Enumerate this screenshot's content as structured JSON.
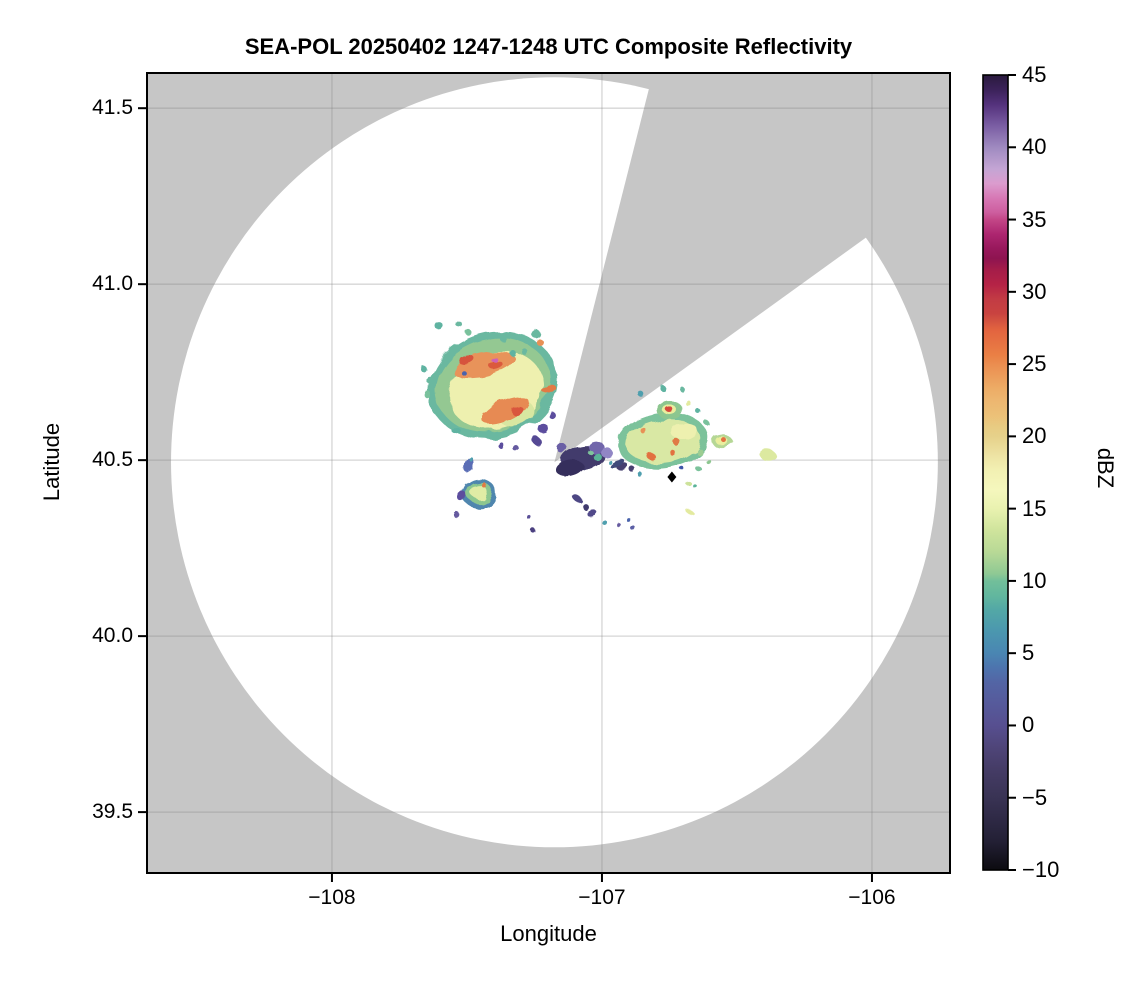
{
  "chart_data": {
    "type": "radar_ppi_map",
    "title": "SEA-POL 20250402 1247-1248 UTC Composite Reflectivity",
    "xlabel": "Longitude",
    "ylabel": "Latitude",
    "xlim": [
      -108.685,
      -105.711
    ],
    "ylim": [
      39.327,
      41.6
    ],
    "grid": true,
    "x_ticks": [
      -108,
      -107,
      -106
    ],
    "x_tick_labels": [
      "−108",
      "−107",
      "−106"
    ],
    "y_ticks": [
      41.5,
      41.0,
      40.5,
      40.0,
      39.5
    ],
    "y_tick_labels": [
      "41.5",
      "41.0",
      "40.5",
      "40.0",
      "39.5"
    ],
    "background_color": "#c6c6c6",
    "scan_area_color": "#ffffff",
    "gridline_color": "rgba(128,128,128,0.32)",
    "radar": {
      "lon": -107.176,
      "lat": 40.494,
      "range_rx_deg_lon": 1.42,
      "range_ry_deg_lat": 1.094
    },
    "blocked_sector": {
      "azimuth_start_deg": 14.2,
      "azimuth_end_deg": 55.0,
      "color": "#c6c6c6"
    },
    "site_marker": {
      "lon": -106.741,
      "lat": 40.452,
      "shape": "diamond",
      "color": "#000000"
    },
    "colorbar": {
      "label": "dBZ",
      "min": -10,
      "max": 45,
      "ticks": [
        45,
        40,
        35,
        30,
        25,
        20,
        15,
        10,
        5,
        0,
        -5,
        -10
      ],
      "tick_labels": [
        "45",
        "40",
        "35",
        "30",
        "25",
        "20",
        "15",
        "10",
        "5",
        "0",
        "−5",
        "−10"
      ],
      "stops": [
        [
          45,
          "#2a1a3e"
        ],
        [
          44,
          "#3b2259"
        ],
        [
          43,
          "#53317b"
        ],
        [
          41.5,
          "#7a5da3"
        ],
        [
          40,
          "#9f8ac0"
        ],
        [
          38.5,
          "#c4a5d4"
        ],
        [
          37.5,
          "#db9cce"
        ],
        [
          36.5,
          "#d778b5"
        ],
        [
          35.5,
          "#cd5e9f"
        ],
        [
          35,
          "#c34687"
        ],
        [
          34,
          "#ad2670"
        ],
        [
          33,
          "#98185c"
        ],
        [
          32.3,
          "#8e1450"
        ],
        [
          31.5,
          "#a51d49"
        ],
        [
          30.5,
          "#b52346"
        ],
        [
          29.5,
          "#c23b44"
        ],
        [
          28.5,
          "#c94340"
        ],
        [
          28,
          "#d35340"
        ],
        [
          27.4,
          "#e2633f"
        ],
        [
          25.6,
          "#ea8045"
        ],
        [
          24.9,
          "#eb8f51"
        ],
        [
          23.3,
          "#edac66"
        ],
        [
          22.6,
          "#edb56f"
        ],
        [
          21.4,
          "#ecc178"
        ],
        [
          20.7,
          "#e8cb82"
        ],
        [
          20,
          "#e6d18a"
        ],
        [
          18.6,
          "#eee4a5"
        ],
        [
          17.7,
          "#f2f0b2"
        ],
        [
          16.3,
          "#f5f7bd"
        ],
        [
          15,
          "#e9f2b0"
        ],
        [
          13.5,
          "#cfe49c"
        ],
        [
          12,
          "#b8d996"
        ],
        [
          10.5,
          "#8fc994"
        ],
        [
          10,
          "#72bf9a"
        ],
        [
          9,
          "#62b79e"
        ],
        [
          8,
          "#53a8a6"
        ],
        [
          6.5,
          "#4b97af"
        ],
        [
          5,
          "#4a86b2"
        ],
        [
          4,
          "#4d74ae"
        ],
        [
          3,
          "#5365a5"
        ],
        [
          1.5,
          "#565a9b"
        ],
        [
          0,
          "#574f90"
        ],
        [
          -1.5,
          "#4f4579"
        ],
        [
          -3,
          "#453c66"
        ],
        [
          -5,
          "#393354"
        ],
        [
          -6.5,
          "#2e2945"
        ],
        [
          -8,
          "#232035"
        ],
        [
          -10,
          "#0c0b10"
        ]
      ]
    },
    "echo_fields": [
      "lon",
      "lat",
      "rx_deg",
      "ry_deg",
      "rot_deg",
      "color",
      "dbz_approx"
    ],
    "echoes": [
      [
        -107.404,
        40.713,
        0.241,
        0.151,
        -15,
        "#6ab8a0",
        8
      ],
      [
        -107.404,
        40.713,
        0.215,
        0.131,
        -15,
        "#94c892",
        11
      ],
      [
        -107.393,
        40.699,
        0.178,
        0.108,
        -18,
        "#eef0af",
        17
      ],
      [
        -107.319,
        40.634,
        0.067,
        0.037,
        -20,
        "#d8e7a1",
        14
      ],
      [
        -107.437,
        40.77,
        0.119,
        0.034,
        -12,
        "#e8935a",
        23
      ],
      [
        -107.5,
        40.784,
        0.03,
        0.013,
        -12,
        "#d6523d",
        27
      ],
      [
        -107.389,
        40.767,
        0.026,
        0.011,
        -12,
        "#db5a3e",
        26
      ],
      [
        -107.396,
        40.784,
        0.012,
        0.008,
        0,
        "#cf62b5",
        35
      ],
      [
        -107.359,
        40.642,
        0.093,
        0.028,
        -25,
        "#e78a52",
        24
      ],
      [
        -107.315,
        40.642,
        0.022,
        0.013,
        -25,
        "#d9573e",
        27
      ],
      [
        -107.196,
        40.702,
        0.026,
        0.011,
        -20,
        "#e27a45",
        25
      ],
      [
        -107.23,
        40.835,
        0.013,
        0.009,
        0,
        "#e89055",
        22
      ],
      [
        -107.515,
        40.75,
        0.009,
        0.007,
        0,
        "#4a63ac",
        3
      ],
      [
        -107.189,
        40.631,
        0.013,
        0.01,
        0,
        "#5c4e9e",
        0
      ],
      [
        -107.219,
        40.591,
        0.019,
        0.014,
        0,
        "#5c4e9e",
        0
      ],
      [
        -107.241,
        40.554,
        0.015,
        0.011,
        0,
        "#544a94",
        -1
      ],
      [
        -107.319,
        40.534,
        0.011,
        0.009,
        0,
        "#655aa0",
        1
      ],
      [
        -107.378,
        40.545,
        0.011,
        0.009,
        0,
        "#5c4e9e",
        0
      ],
      [
        -107.607,
        40.884,
        0.015,
        0.011,
        0,
        "#5fb3a1",
        8
      ],
      [
        -107.533,
        40.889,
        0.011,
        0.009,
        0,
        "#6ab8a0",
        8
      ],
      [
        -107.496,
        40.864,
        0.011,
        0.009,
        0,
        "#79c19c",
        9
      ],
      [
        -107.367,
        40.847,
        0.013,
        0.01,
        0,
        "#6ab8a0",
        8
      ],
      [
        -107.33,
        40.804,
        0.011,
        0.009,
        0,
        "#5fb3a1",
        8
      ],
      [
        -107.285,
        40.807,
        0.011,
        0.009,
        0,
        "#6ab8a0",
        8
      ],
      [
        -107.244,
        40.858,
        0.017,
        0.012,
        0,
        "#6ab8a0",
        8
      ],
      [
        -107.663,
        40.761,
        0.011,
        0.009,
        0,
        "#5fb3a1",
        7
      ],
      [
        -107.637,
        40.727,
        0.013,
        0.01,
        0,
        "#6ab8a0",
        8
      ],
      [
        -107.644,
        40.685,
        0.013,
        0.01,
        0,
        "#79c19c",
        9
      ],
      [
        -107.611,
        40.636,
        0.011,
        0.009,
        0,
        "#6ab8a0",
        8
      ],
      [
        -107.541,
        40.585,
        0.015,
        0.011,
        0,
        "#5fb3a1",
        7
      ],
      [
        -106.774,
        40.554,
        0.167,
        0.077,
        -8,
        "#7cc29b",
        10
      ],
      [
        -106.774,
        40.554,
        0.137,
        0.06,
        -8,
        "#d9e8a4",
        14
      ],
      [
        -106.693,
        40.58,
        0.048,
        0.023,
        -8,
        "#eef0af",
        17
      ],
      [
        -106.822,
        40.514,
        0.015,
        0.01,
        0,
        "#e2713f",
        25
      ],
      [
        -106.719,
        40.548,
        0.013,
        0.01,
        0,
        "#e07a45",
        24
      ],
      [
        -106.741,
        40.523,
        0.011,
        0.008,
        0,
        "#e2713f",
        25
      ],
      [
        -106.848,
        40.585,
        0.011,
        0.008,
        0,
        "#e89055",
        22
      ],
      [
        -106.556,
        40.554,
        0.037,
        0.02,
        0,
        "#b5d795",
        13
      ],
      [
        -106.556,
        40.554,
        0.022,
        0.012,
        0,
        "#e9ee9e",
        16
      ],
      [
        -106.548,
        40.557,
        0.009,
        0.007,
        0,
        "#e2713f",
        25
      ],
      [
        -106.385,
        40.514,
        0.03,
        0.014,
        0,
        "#dce9a0",
        15
      ],
      [
        -106.748,
        40.642,
        0.048,
        0.026,
        0,
        "#8cc68f",
        12
      ],
      [
        -106.748,
        40.642,
        0.026,
        0.014,
        0,
        "#e9ee9e",
        17
      ],
      [
        -106.748,
        40.642,
        0.014,
        0.008,
        0,
        "#d44a3c",
        28
      ],
      [
        -106.778,
        40.707,
        0.011,
        0.008,
        0,
        "#5fb3a1",
        7
      ],
      [
        -106.7,
        40.699,
        0.009,
        0.007,
        0,
        "#6ab8a0",
        8
      ],
      [
        -106.681,
        40.662,
        0.011,
        0.007,
        0,
        "#e3ea9f",
        16
      ],
      [
        -106.637,
        40.634,
        0.009,
        0.007,
        0,
        "#5fb3a1",
        7
      ],
      [
        -106.611,
        40.605,
        0.009,
        0.007,
        0,
        "#79c19c",
        9
      ],
      [
        -106.856,
        40.688,
        0.011,
        0.008,
        0,
        "#4f9fae",
        6
      ],
      [
        -106.644,
        40.528,
        0.013,
        0.009,
        0,
        "#9ccd92",
        11
      ],
      [
        -106.611,
        40.5,
        0.009,
        0.007,
        0,
        "#8cc68f",
        10
      ],
      [
        -106.644,
        40.477,
        0.011,
        0.007,
        0,
        "#7cc29b",
        10
      ],
      [
        -106.7,
        40.474,
        0.007,
        0.006,
        0,
        "#3c55a8",
        2
      ],
      [
        -106.681,
        40.435,
        0.011,
        0.006,
        0,
        "#cde29b",
        13
      ],
      [
        -106.678,
        40.355,
        0.011,
        0.006,
        0,
        "#e3ea9f",
        16
      ],
      [
        -106.856,
        40.457,
        0.009,
        0.007,
        0,
        "#4f9fae",
        5
      ],
      [
        -106.659,
        40.429,
        0.007,
        0.005,
        0,
        "#5ab398",
        8
      ],
      [
        -107.07,
        40.506,
        0.081,
        0.034,
        -10,
        "#423a6c",
        43
      ],
      [
        -107.119,
        40.477,
        0.052,
        0.023,
        -10,
        "#352e5c",
        44
      ],
      [
        -107.022,
        40.537,
        0.03,
        0.017,
        0,
        "#7166ab",
        41
      ],
      [
        -106.985,
        40.523,
        0.022,
        0.014,
        0,
        "#9186c5",
        40
      ],
      [
        -107.148,
        40.534,
        0.019,
        0.014,
        0,
        "#6a5fa5",
        41
      ],
      [
        -107.019,
        40.511,
        0.015,
        0.011,
        0,
        "#5ab398",
        8
      ],
      [
        -107.048,
        40.526,
        0.009,
        0.007,
        0,
        "#7fc49c",
        9
      ],
      [
        -106.926,
        40.483,
        0.022,
        0.009,
        -15,
        "#46406f",
        43
      ],
      [
        -106.885,
        40.472,
        0.011,
        0.009,
        0,
        "#46406f",
        43
      ],
      [
        -106.944,
        40.491,
        0.03,
        0.009,
        -20,
        "#3f4a7a",
        2
      ],
      [
        -106.974,
        40.497,
        0.007,
        0.006,
        0,
        "#4f9fae",
        6
      ],
      [
        -107.456,
        40.406,
        0.063,
        0.043,
        0,
        "#4f86ae",
        5
      ],
      [
        -107.456,
        40.409,
        0.048,
        0.031,
        0,
        "#8cc68f",
        10
      ],
      [
        -107.459,
        40.412,
        0.03,
        0.02,
        0,
        "#e0eca5",
        15
      ],
      [
        -107.441,
        40.432,
        0.009,
        0.007,
        0,
        "#e07a45",
        24
      ],
      [
        -107.515,
        40.395,
        0.015,
        0.017,
        0,
        "#5c4e9e",
        0
      ],
      [
        -107.496,
        40.489,
        0.015,
        0.023,
        15,
        "#5a6db5",
        3
      ],
      [
        -107.489,
        40.506,
        0.007,
        0.006,
        0,
        "#4f9fae",
        6
      ],
      [
        -107.541,
        40.347,
        0.011,
        0.009,
        0,
        "#655a9f",
        0
      ],
      [
        -107.089,
        40.389,
        0.019,
        0.009,
        35,
        "#4e4784",
        -1
      ],
      [
        -107.059,
        40.366,
        0.011,
        0.009,
        0,
        "#3f3a6e",
        -3
      ],
      [
        -107.037,
        40.349,
        0.019,
        0.007,
        -20,
        "#514a8a",
        0
      ],
      [
        -106.996,
        40.327,
        0.009,
        0.007,
        0,
        "#4f9fae",
        6
      ],
      [
        -106.904,
        40.332,
        0.007,
        0.006,
        0,
        "#4a63ac",
        3
      ],
      [
        -106.885,
        40.307,
        0.009,
        0.007,
        0,
        "#5c5fa5",
        2
      ],
      [
        -106.937,
        40.315,
        0.007,
        0.006,
        0,
        "#655a9f",
        1
      ],
      [
        -107.274,
        40.341,
        0.007,
        0.006,
        0,
        "#5a4f97",
        0
      ],
      [
        -107.256,
        40.301,
        0.009,
        0.007,
        0,
        "#4b4180",
        -1
      ]
    ]
  }
}
